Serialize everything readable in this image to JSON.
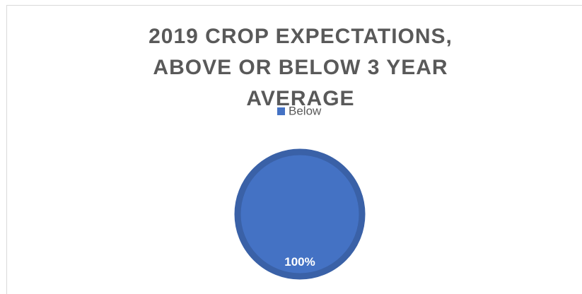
{
  "chart_data": {
    "type": "pie",
    "title": "2019 CROP EXPECTATIONS, ABOVE OR BELOW 3 YEAR AVERAGE",
    "categories": [
      "Below"
    ],
    "values": [
      100
    ],
    "value_labels": [
      "100%"
    ],
    "colors": [
      "#4472c4"
    ],
    "legend": "top"
  }
}
